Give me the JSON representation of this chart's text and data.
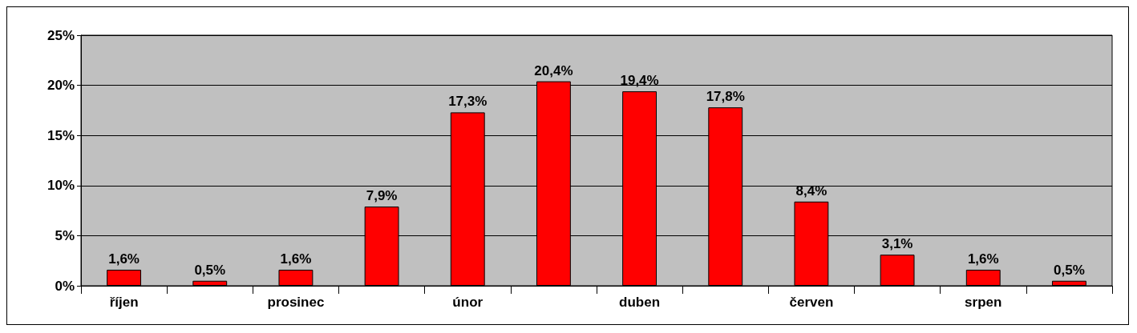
{
  "chart_data": {
    "type": "bar",
    "categories": [
      "říjen",
      null,
      "prosinec",
      null,
      "únor",
      null,
      "duben",
      null,
      "červen",
      null,
      "srpen",
      null
    ],
    "values": [
      1.6,
      0.5,
      1.6,
      7.9,
      17.3,
      20.4,
      19.4,
      17.8,
      8.4,
      3.1,
      1.6,
      0.5
    ],
    "value_labels": [
      "1,6%",
      "0,5%",
      "1,6%",
      "7,9%",
      "17,3%",
      "20,4%",
      "19,4%",
      "17,8%",
      "8,4%",
      "3,1%",
      "1,6%",
      "0,5%"
    ],
    "color": "#ff0000",
    "ylim": [
      0,
      25
    ],
    "yticks": [
      {
        "value": 0,
        "label": "0%"
      },
      {
        "value": 5,
        "label": "5%"
      },
      {
        "value": 10,
        "label": "10%"
      },
      {
        "value": 15,
        "label": "15%"
      },
      {
        "value": 20,
        "label": "20%"
      },
      {
        "value": 25,
        "label": "25%"
      }
    ],
    "grid": "y"
  }
}
